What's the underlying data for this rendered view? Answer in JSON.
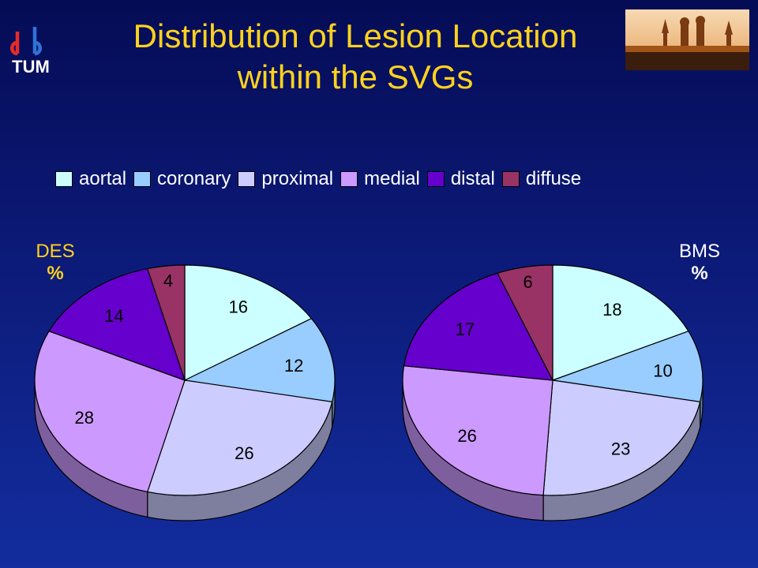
{
  "slide": {
    "title_line1": "Distribution of Lesion Location",
    "title_line2": "within the SVGs",
    "logo_text": "TUM",
    "photo_alt": "Munich skyline"
  },
  "colors": {
    "background_top": "#050c55",
    "background_bottom": "#132d9e",
    "title": "#ffd21e",
    "des_label": "#ffd21e",
    "bms_label": "#ffffff"
  },
  "chart_data": [
    {
      "type": "pie",
      "style": "3d",
      "label_line1": "DES",
      "label_line2": "%",
      "categories": [
        "aortal",
        "coronary",
        "proximal",
        "medial",
        "distal",
        "diffuse"
      ],
      "values": [
        16,
        12,
        26,
        28,
        14,
        4
      ],
      "colors": [
        "#ccffff",
        "#99ccff",
        "#ccccff",
        "#cc99ff",
        "#6600cc",
        "#993366"
      ],
      "legend": "top"
    },
    {
      "type": "pie",
      "style": "3d",
      "label_line1": "BMS",
      "label_line2": "%",
      "categories": [
        "aortal",
        "coronary",
        "proximal",
        "medial",
        "distal",
        "diffuse"
      ],
      "values": [
        18,
        10,
        23,
        26,
        17,
        6
      ],
      "colors": [
        "#ccffff",
        "#99ccff",
        "#ccccff",
        "#cc99ff",
        "#6600cc",
        "#993366"
      ],
      "legend": "top"
    }
  ],
  "legend": [
    {
      "label": "aortal",
      "color": "#ccffff"
    },
    {
      "label": "coronary",
      "color": "#99ccff"
    },
    {
      "label": "proximal",
      "color": "#ccccff"
    },
    {
      "label": "medial",
      "color": "#cc99ff"
    },
    {
      "label": "distal",
      "color": "#6600cc"
    },
    {
      "label": "diffuse",
      "color": "#993366"
    }
  ]
}
